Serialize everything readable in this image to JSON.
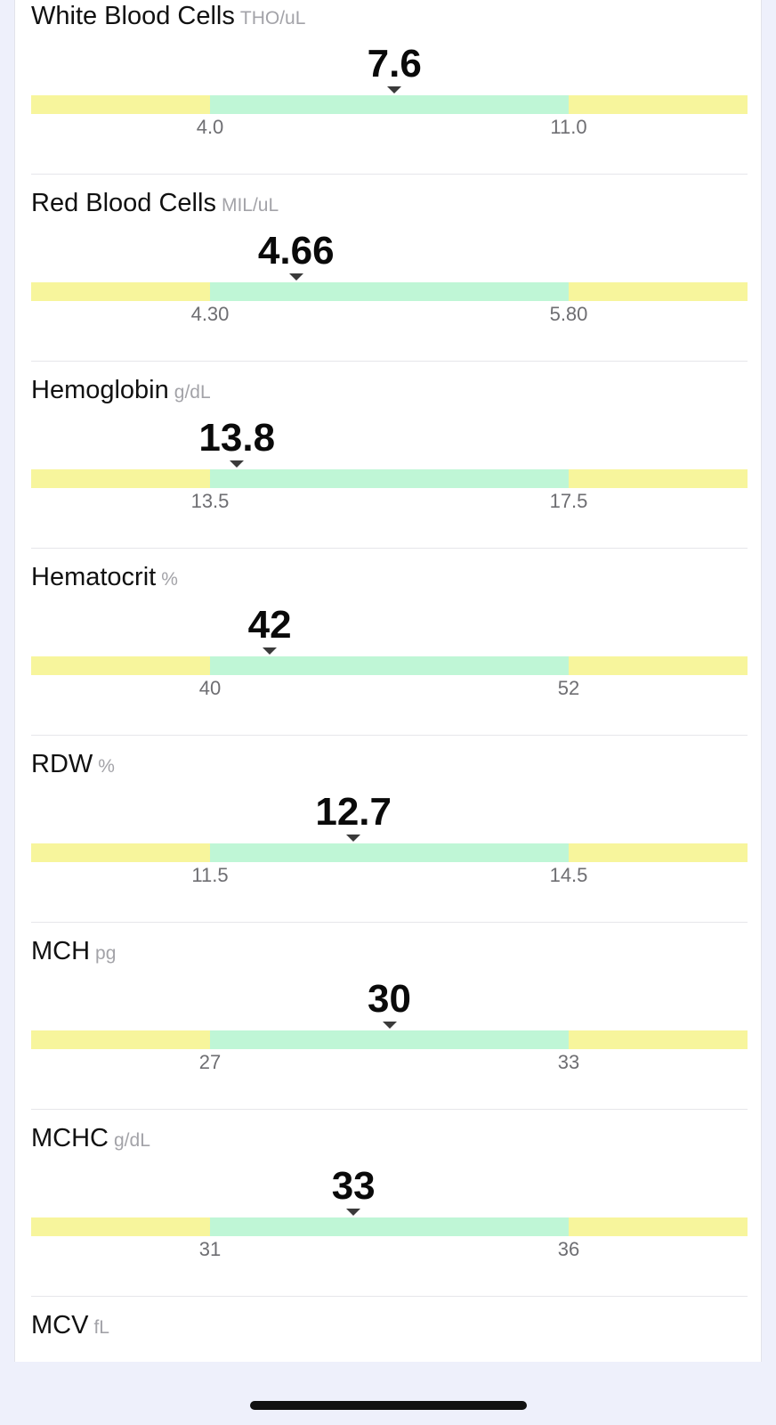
{
  "results": [
    {
      "name": "White Blood Cells",
      "unit": "THO/uL",
      "value": "7.6",
      "value_num": 7.6,
      "low": "4.0",
      "low_num": 4.0,
      "high": "11.0",
      "high_num": 11.0
    },
    {
      "name": "Red Blood Cells",
      "unit": "MIL/uL",
      "value": "4.66",
      "value_num": 4.66,
      "low": "4.30",
      "low_num": 4.3,
      "high": "5.80",
      "high_num": 5.8
    },
    {
      "name": "Hemoglobin",
      "unit": "g/dL",
      "value": "13.8",
      "value_num": 13.8,
      "low": "13.5",
      "low_num": 13.5,
      "high": "17.5",
      "high_num": 17.5
    },
    {
      "name": "Hematocrit",
      "unit": "%",
      "value": "42",
      "value_num": 42,
      "low": "40",
      "low_num": 40,
      "high": "52",
      "high_num": 52
    },
    {
      "name": "RDW",
      "unit": "%",
      "value": "12.7",
      "value_num": 12.7,
      "low": "11.5",
      "low_num": 11.5,
      "high": "14.5",
      "high_num": 14.5
    },
    {
      "name": "MCH",
      "unit": "pg",
      "value": "30",
      "value_num": 30,
      "low": "27",
      "low_num": 27,
      "high": "33",
      "high_num": 33
    },
    {
      "name": "MCHC",
      "unit": "g/dL",
      "value": "33",
      "value_num": 33,
      "low": "31",
      "low_num": 31,
      "high": "36",
      "high_num": 36
    }
  ],
  "partial_result": {
    "name": "MCV",
    "unit": "fL"
  },
  "colors": {
    "out_of_range": "#f7f59c",
    "in_range": "#bff6d6",
    "background": "#eef0fb"
  }
}
